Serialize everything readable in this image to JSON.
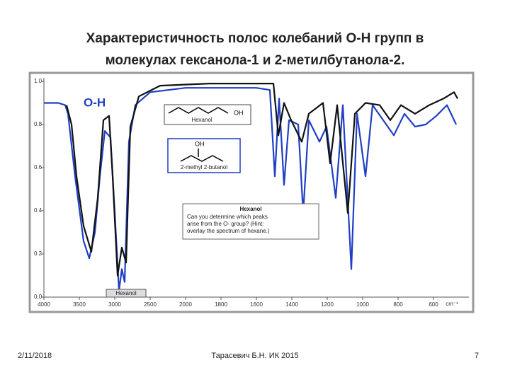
{
  "title": [
    "Характеристичность полос колебаний О-Н групп  в",
    "молекулах гексанола-1 и 2-метилбутанола-2."
  ],
  "chart_data": {
    "type": "line",
    "xlabel": "cm⁻¹",
    "xlim": [
      4000,
      400
    ],
    "xticks": [
      4000,
      3500,
      3000,
      2500,
      2000,
      1800,
      1600,
      1400,
      1200,
      1000,
      800,
      600
    ],
    "ylim": [
      0,
      1
    ],
    "yticks": [
      {
        "value": 0,
        "label": "0.0"
      },
      0.2,
      0.4,
      0.6,
      0.8,
      {
        "value": 1,
        "label": "1.0"
      }
    ],
    "series": [
      {
        "name": "2-methyl 2-butanol",
        "color": "#1f3fc4",
        "x": [
          4000,
          3800,
          3700,
          3660,
          3560,
          3440,
          3360,
          3280,
          3210,
          3140,
          3060,
          3000,
          2940,
          2900,
          2860,
          2800,
          2710,
          2500,
          2000,
          1800,
          1600,
          1524,
          1496,
          1472,
          1444,
          1416,
          1364,
          1336,
          1304,
          1244,
          1204,
          1152,
          1112,
          1064,
          1032,
          984,
          944,
          884,
          824,
          764,
          704,
          644,
          584,
          524,
          472
        ],
        "values": [
          0.9,
          0.9,
          0.89,
          0.85,
          0.56,
          0.26,
          0.18,
          0.3,
          0.56,
          0.77,
          0.74,
          0.39,
          0.03,
          0.13,
          0.07,
          0.72,
          0.89,
          0.95,
          0.97,
          0.97,
          0.97,
          0.96,
          0.56,
          0.92,
          0.52,
          0.82,
          0.8,
          0.39,
          0.82,
          0.72,
          0.79,
          0.46,
          0.89,
          0.13,
          0.85,
          0.56,
          0.89,
          0.82,
          0.75,
          0.85,
          0.79,
          0.8,
          0.84,
          0.89,
          0.8
        ]
      },
      {
        "name": "Hexanol",
        "color": "#111111",
        "x": [
          3680,
          3610,
          3540,
          3440,
          3330,
          3240,
          3160,
          3080,
          3030,
          2960,
          2900,
          2840,
          2780,
          2660,
          2360,
          1864,
          1544,
          1504,
          1476,
          1444,
          1404,
          1344,
          1304,
          1224,
          1184,
          1144,
          1084,
          1044,
          984,
          904,
          844,
          784,
          704,
          624,
          544,
          484,
          464
        ],
        "values": [
          0.89,
          0.8,
          0.56,
          0.33,
          0.21,
          0.46,
          0.82,
          0.84,
          0.56,
          0.1,
          0.23,
          0.16,
          0.79,
          0.93,
          0.98,
          0.99,
          0.99,
          0.99,
          0.75,
          0.9,
          0.82,
          0.72,
          0.85,
          0.9,
          0.62,
          0.89,
          0.39,
          0.85,
          0.9,
          0.89,
          0.82,
          0.89,
          0.85,
          0.89,
          0.92,
          0.95,
          0.92
        ]
      }
    ],
    "annotations": {
      "group": "O-H",
      "oh_1": "OH",
      "oh_2": "OH",
      "question_title": "Hexanol",
      "question": [
        "Can you determine which peaks",
        "arise from the O- group? (Hint:",
        "overlay the spectrum of hexane.)"
      ],
      "bottom_label": "Hexanol"
    }
  },
  "footer": {
    "date": "2/11/2018",
    "author": "Тарасевич Б.Н. ИК 2015",
    "page": "7"
  }
}
